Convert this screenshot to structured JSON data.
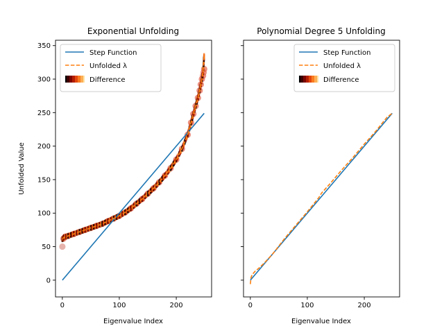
{
  "chart_data": [
    {
      "type": "line",
      "title": "Exponential Unfolding",
      "xlabel": "Eigenvalue Index",
      "ylabel": "Unfolded Value",
      "xlim": [
        -12,
        262
      ],
      "ylim": [
        -25,
        358
      ],
      "xticks": [
        0,
        100,
        200
      ],
      "yticks": [
        0,
        50,
        100,
        150,
        200,
        250,
        300,
        350
      ],
      "grid": false,
      "legend_position": "top-left",
      "legend": [
        "Step Function",
        "Unfolded λ",
        "Difference"
      ],
      "step_function": {
        "x": [
          0,
          249
        ],
        "y": [
          0,
          249
        ]
      },
      "unfolded": {
        "x": [
          0,
          3,
          10,
          20,
          30,
          40,
          50,
          60,
          70,
          80,
          90,
          100,
          110,
          120,
          130,
          140,
          150,
          160,
          170,
          180,
          190,
          200,
          210,
          220,
          226,
          230,
          234,
          238,
          241,
          243,
          245,
          247,
          248,
          249
        ],
        "y": [
          61,
          64,
          66,
          69,
          72,
          75,
          78,
          81,
          84,
          88,
          92,
          96,
          101,
          107,
          114,
          121,
          129,
          137,
          146,
          156,
          167,
          180,
          196,
          217,
          235,
          248,
          260,
          272,
          283,
          292,
          300,
          310,
          322,
          336
        ]
      },
      "difference_markers": {
        "x": [
          0,
          2,
          5,
          10,
          20,
          30,
          40,
          50,
          60,
          70,
          80,
          90,
          100,
          110,
          120,
          130,
          140,
          150,
          160,
          170,
          180,
          190,
          200,
          210,
          220,
          226,
          230,
          234,
          238,
          241,
          243,
          245,
          247,
          248,
          249
        ],
        "y": [
          50,
          62,
          65,
          66,
          69,
          72,
          75,
          78,
          81,
          84,
          88,
          92,
          96,
          101,
          107,
          114,
          121,
          129,
          137,
          146,
          156,
          167,
          180,
          196,
          217,
          235,
          248,
          260,
          272,
          283,
          292,
          300,
          305,
          310,
          315
        ]
      }
    },
    {
      "type": "line",
      "title": "Polynomial Degree 5 Unfolding",
      "xlabel": "Eigenvalue Index",
      "ylabel": "",
      "xlim": [
        -12,
        262
      ],
      "ylim": [
        -25,
        358
      ],
      "xticks": [
        0,
        100,
        200
      ],
      "yticks": [
        0,
        50,
        100,
        150,
        200,
        250,
        300,
        350
      ],
      "grid": false,
      "legend_position": "top-right",
      "legend": [
        "Step Function",
        "Unfolded λ",
        "Difference"
      ],
      "step_function": {
        "x": [
          0,
          249
        ],
        "y": [
          0,
          249
        ]
      },
      "unfolded": {
        "x": [
          0,
          1,
          2,
          4,
          8,
          15,
          25,
          40,
          60,
          80,
          100,
          120,
          125,
          140,
          160,
          180,
          200,
          220,
          235,
          240,
          249
        ],
        "y": [
          -6,
          3,
          6,
          9,
          13,
          18,
          26,
          40,
          62,
          82,
          102,
          123,
          130,
          144,
          164,
          183,
          203,
          222,
          238,
          243,
          249
        ]
      },
      "difference_markers": {
        "x": [],
        "y": []
      }
    }
  ]
}
